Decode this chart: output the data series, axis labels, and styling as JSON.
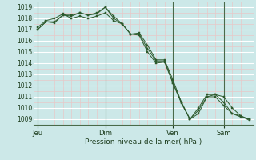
{
  "background_color": "#cce8e8",
  "plot_bg_color": "#cce8e8",
  "grid_major_color": "#ffffff",
  "grid_minor_color": "#e8c8c8",
  "vline_color": "#4a6a4a",
  "line_color": "#2d5a2d",
  "marker_color": "#2d5a2d",
  "xlabel": "Pression niveau de la mer( hPa )",
  "ylim": [
    1008.5,
    1019.5
  ],
  "yticks": [
    1009,
    1010,
    1011,
    1012,
    1013,
    1014,
    1015,
    1016,
    1017,
    1018,
    1019
  ],
  "xtick_labels": [
    "Jeu",
    "Dim",
    "Ven",
    "Sam"
  ],
  "xtick_positions": [
    0,
    8,
    16,
    22
  ],
  "vlines": [
    0,
    8,
    16,
    22
  ],
  "xlim": [
    -0.5,
    25.5
  ],
  "series": [
    [
      1017.0,
      1017.7,
      1017.7,
      1018.3,
      1018.2,
      1018.5,
      1018.3,
      1018.5,
      1019.0,
      1018.2,
      1017.5,
      1016.6,
      1016.6,
      1015.3,
      1014.2,
      1014.2,
      1012.2,
      1010.5,
      1009.0,
      1009.8,
      1011.0,
      1011.2,
      1011.0,
      1010.0,
      1009.3,
      1009.0
    ],
    [
      1017.0,
      1017.7,
      1017.6,
      1018.3,
      1018.3,
      1018.5,
      1018.3,
      1018.4,
      1019.0,
      1018.0,
      1017.5,
      1016.6,
      1016.7,
      1015.6,
      1014.3,
      1014.3,
      1012.5,
      1010.5,
      1009.0,
      1010.0,
      1011.2,
      1011.2,
      1010.5,
      1009.5,
      1009.2,
      1009.0
    ],
    [
      1017.2,
      1017.8,
      1018.0,
      1018.4,
      1018.0,
      1018.2,
      1018.0,
      1018.2,
      1018.5,
      1017.8,
      1017.5,
      1016.6,
      1016.5,
      1015.0,
      1014.0,
      1014.1,
      1012.2,
      1010.4,
      1009.0,
      1009.5,
      1011.0,
      1011.0,
      1010.2,
      1009.5,
      1009.3,
      1008.9
    ]
  ],
  "x_values": [
    0,
    1,
    2,
    3,
    4,
    5,
    6,
    7,
    8,
    9,
    10,
    11,
    12,
    13,
    14,
    15,
    16,
    17,
    18,
    19,
    20,
    21,
    22,
    23,
    24,
    25
  ]
}
